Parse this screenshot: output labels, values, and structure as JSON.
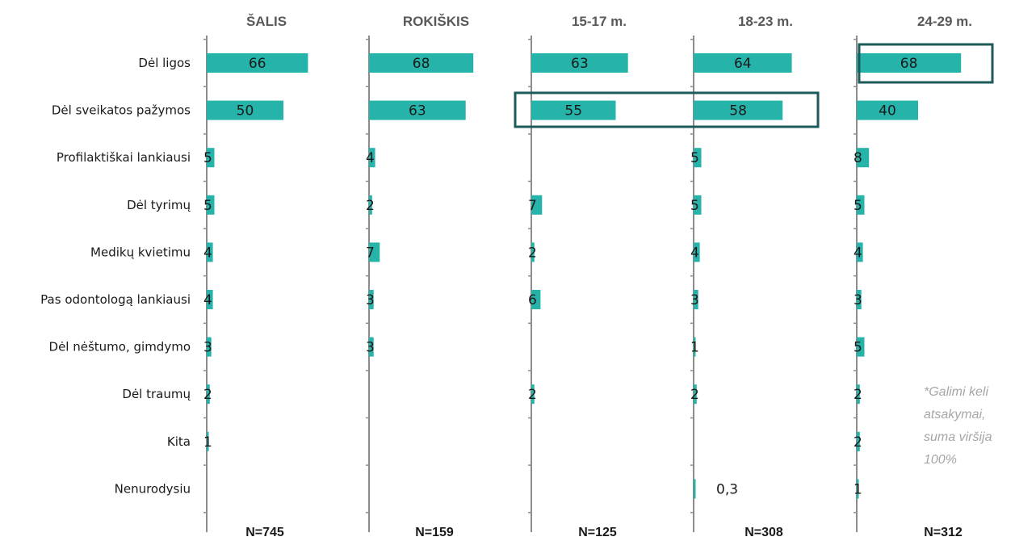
{
  "chart_data": {
    "type": "bar",
    "orientation": "horizontal",
    "categories": [
      "Dėl ligos",
      "Dėl sveikatos pažymos",
      "Profilaktiškai lankiausi",
      "Dėl tyrimų",
      "Medikų kvietimu",
      "Pas odontologą lankiausi",
      "Dėl nėštumo, gimdymo",
      "Dėl traumų",
      "Kita",
      "Nenurodysiu"
    ],
    "panels": [
      {
        "name": "ŠALIS",
        "n": "N=745",
        "values": [
          66,
          50,
          5,
          5,
          4,
          4,
          3,
          2,
          1,
          null
        ],
        "labels": [
          "66",
          "50",
          "5",
          "5",
          "4",
          "4",
          "3",
          "2",
          "1",
          ""
        ]
      },
      {
        "name": "ROKIŠKIS",
        "n": "N=159",
        "values": [
          68,
          63,
          4,
          2,
          7,
          3,
          3,
          null,
          null,
          null
        ],
        "labels": [
          "68",
          "63",
          "4",
          "2",
          "7",
          "3",
          "3",
          "",
          "",
          ""
        ]
      },
      {
        "name": "15-17 m.",
        "n": "N=125",
        "values": [
          63,
          55,
          null,
          7,
          2,
          6,
          null,
          2,
          null,
          null
        ],
        "labels": [
          "63",
          "55",
          "",
          "7",
          "2",
          "6",
          "",
          "2",
          "",
          ""
        ]
      },
      {
        "name": "18-23 m.",
        "n": "N=308",
        "values": [
          64,
          58,
          5,
          5,
          4,
          3,
          1,
          2,
          null,
          0.3
        ],
        "labels": [
          "64",
          "58",
          "5",
          "5",
          "4",
          "3",
          "1",
          "2",
          "",
          "0,3"
        ]
      },
      {
        "name": "24-29 m.",
        "n": "N=312",
        "values": [
          68,
          40,
          8,
          5,
          4,
          3,
          5,
          2,
          2,
          1
        ],
        "labels": [
          "68",
          "40",
          "8",
          "5",
          "4",
          "3",
          "5",
          "2",
          "2",
          "1"
        ]
      }
    ],
    "highlights": [
      {
        "panel": 4,
        "category": 0
      },
      {
        "panel": 2,
        "category": 1,
        "panel_end": 3
      }
    ],
    "bar_color": "#26b3aa",
    "highlight_color": "#1d5a5a",
    "axis_color": "#8c8c8c",
    "note": "*Galimi keli atsakymai, suma viršija 100%",
    "grid": false,
    "legend": "none"
  }
}
